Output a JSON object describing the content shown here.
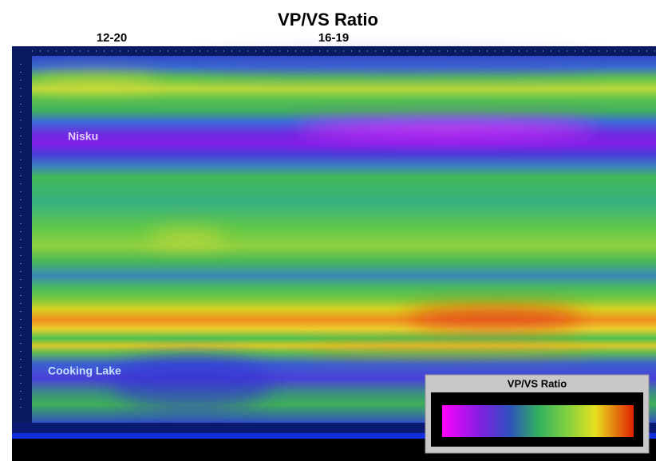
{
  "title": "VP/VS Ratio",
  "well_labels": [
    "12-20",
    "16-19"
  ],
  "horizons": [
    "Nisku",
    "Cooking Lake"
  ],
  "legend": {
    "title": "VP/VS Ratio"
  }
}
